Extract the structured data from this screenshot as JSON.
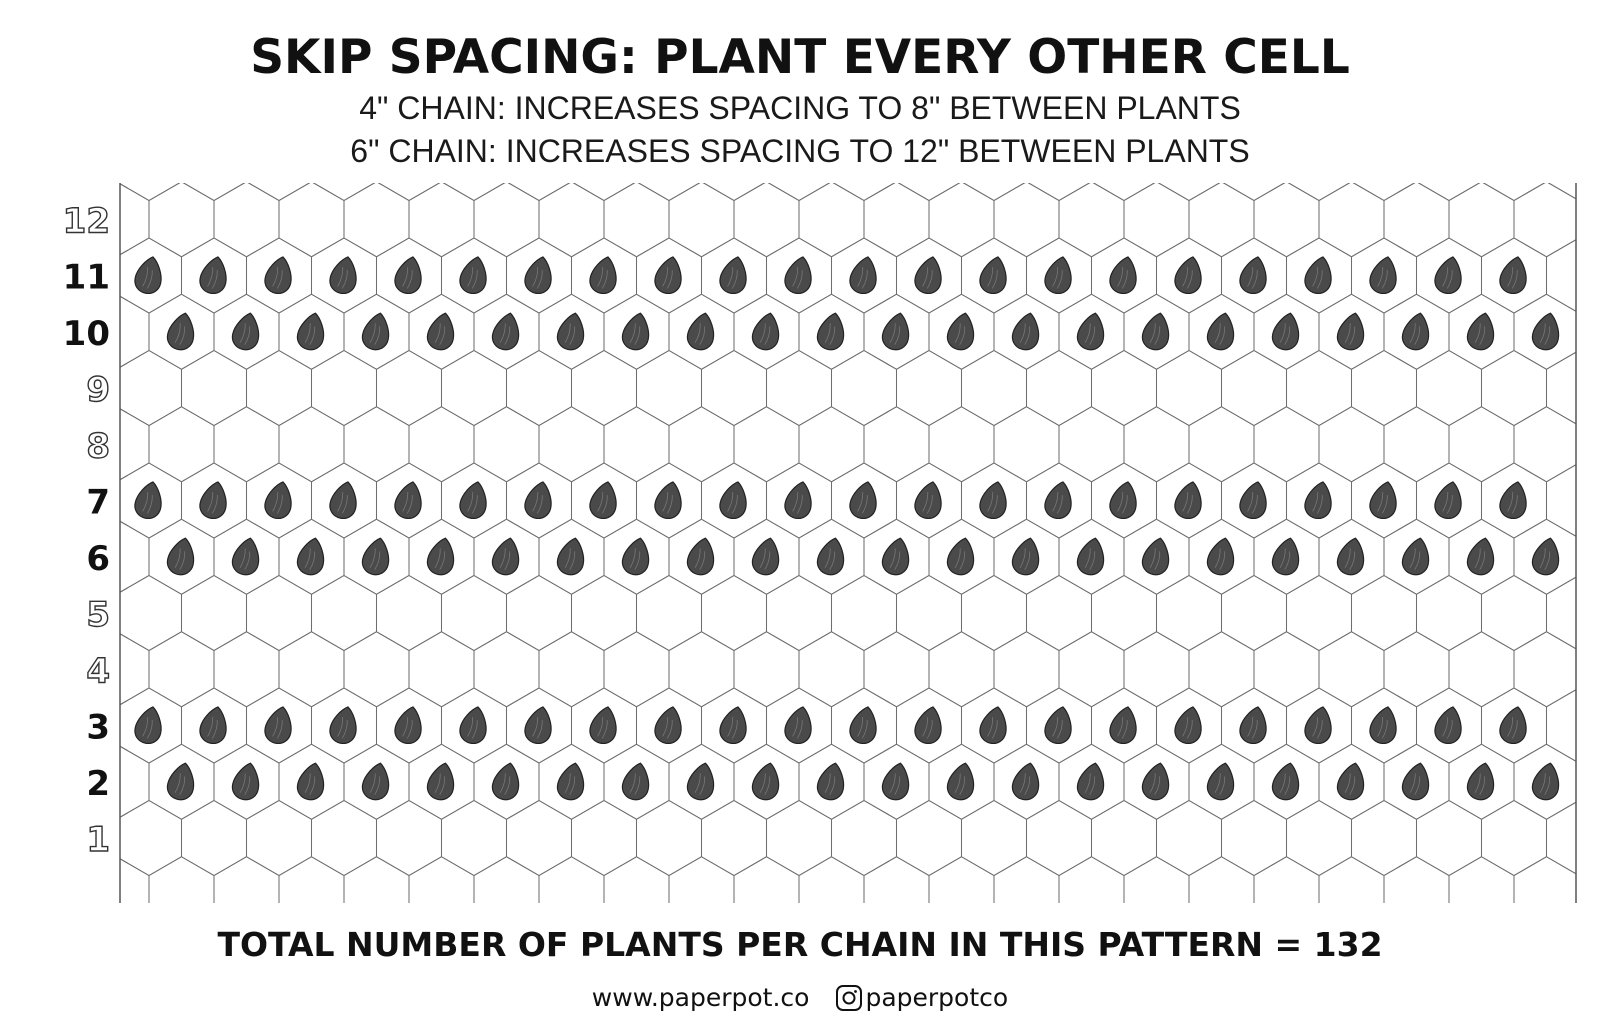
{
  "title": "SKIP SPACING: PLANT EVERY OTHER CELL",
  "subtitle_lines": [
    "4\" CHAIN: INCREASES SPACING TO 8\" BETWEEN PLANTS",
    "6\" CHAIN: INCREASES SPACING TO 12\" BETWEEN PLANTS"
  ],
  "grid": {
    "row_labels": [
      "1",
      "2",
      "3",
      "4",
      "5",
      "6",
      "7",
      "8",
      "9",
      "10",
      "11",
      "12"
    ],
    "planted_rows": [
      "2",
      "3",
      "6",
      "7",
      "10",
      "11"
    ],
    "colors": {
      "seed": "#4a4a4a",
      "line": "#6e6e6e",
      "label_solid": "#111111",
      "label_outline": "#ffffff"
    }
  },
  "total_text": "TOTAL NUMBER OF PLANTS PER CHAIN IN THIS PATTERN = 132",
  "footer": {
    "website": "www.paperpot.co",
    "instagram_icon": "instagram-icon",
    "instagram_handle": "paperpotco"
  }
}
